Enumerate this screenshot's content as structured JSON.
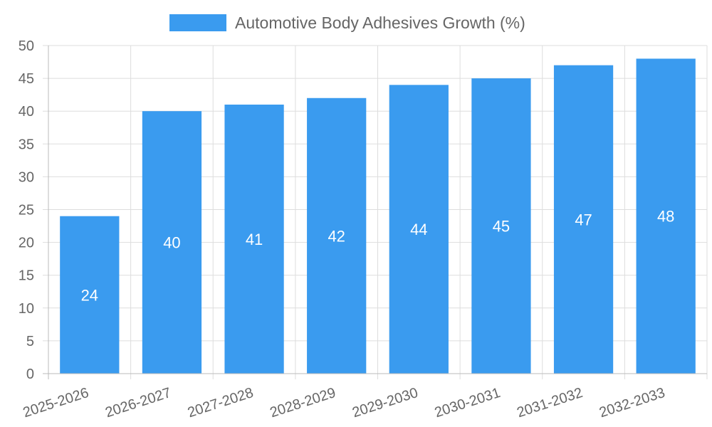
{
  "chart_data": {
    "type": "bar",
    "title": "",
    "xlabel": "",
    "ylabel": "",
    "categories": [
      "2025-2026",
      "2026-2027",
      "2027-2028",
      "2028-2029",
      "2029-2030",
      "2030-2031",
      "2031-2032",
      "2032-2033"
    ],
    "series": [
      {
        "name": "Automotive Body Adhesives Growth (%)",
        "values": [
          24,
          40,
          41,
          42,
          44,
          45,
          47,
          48
        ]
      }
    ],
    "ylim": [
      0,
      50
    ],
    "yticks": [
      0,
      5,
      10,
      15,
      20,
      25,
      30,
      35,
      40,
      45,
      50
    ],
    "grid": true,
    "legend_position": "top-center",
    "data_labels": true
  },
  "colors": {
    "bar": "#3a9bef",
    "grid": "#dddddd",
    "axis": "#bbbbbb",
    "tick_text": "#666666",
    "value_text": "#ffffff"
  }
}
